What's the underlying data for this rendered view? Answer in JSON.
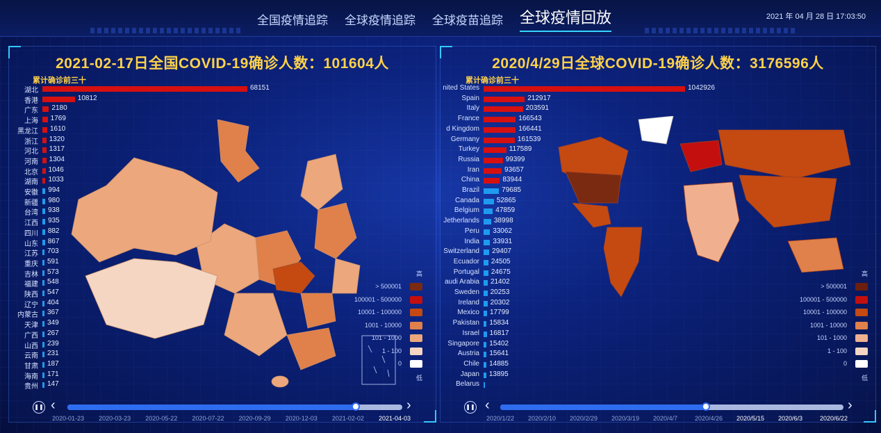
{
  "header": {
    "nav": [
      "全国疫情追踪",
      "全球疫情追踪",
      "全球疫苗追踪",
      "全球疫情回放"
    ],
    "active_index": 3,
    "clock": "2021 年 04 月 28 日 17:03:50"
  },
  "china_panel": {
    "title": "2021-02-17日全国COVID-19确诊人数：101604人",
    "rank_title": "累计确诊前三十",
    "items": [
      {
        "name": "湖北",
        "value": "68151"
      },
      {
        "name": "香港",
        "value": "10812"
      },
      {
        "name": "广东",
        "value": "2180"
      },
      {
        "name": "上海",
        "value": "1769"
      },
      {
        "name": "黑龙江",
        "value": "1610"
      },
      {
        "name": "浙江",
        "value": "1320"
      },
      {
        "name": "河北",
        "value": "1317"
      },
      {
        "name": "河南",
        "value": "1304"
      },
      {
        "name": "北京",
        "value": "1046"
      },
      {
        "name": "湖南",
        "value": "1033"
      },
      {
        "name": "安徽",
        "value": "994"
      },
      {
        "name": "新疆",
        "value": "980"
      },
      {
        "name": "台湾",
        "value": "938"
      },
      {
        "name": "江西",
        "value": "935"
      },
      {
        "name": "四川",
        "value": "882"
      },
      {
        "name": "山东",
        "value": "867"
      },
      {
        "name": "江苏",
        "value": "703"
      },
      {
        "name": "重庆",
        "value": "591"
      },
      {
        "name": "吉林",
        "value": "573"
      },
      {
        "name": "福建",
        "value": "548"
      },
      {
        "name": "陕西",
        "value": "547"
      },
      {
        "name": "辽宁",
        "value": "404"
      },
      {
        "name": "内蒙古",
        "value": "367"
      },
      {
        "name": "天津",
        "value": "349"
      },
      {
        "name": "广西",
        "value": "267"
      },
      {
        "name": "山西",
        "value": "239"
      },
      {
        "name": "云南",
        "value": "231"
      },
      {
        "name": "甘肃",
        "value": "187"
      },
      {
        "name": "海南",
        "value": "171"
      },
      {
        "name": "贵州",
        "value": "147"
      }
    ],
    "legend": {
      "high": "高",
      "low": "低",
      "ranges": [
        "> 500001",
        "100001 - 500000",
        "10001 - 100000",
        "1001 - 10000",
        "101 - 1000",
        "1 - 100",
        "0"
      ],
      "colors": [
        "#7b2a12",
        "#c40f0f",
        "#c44a12",
        "#e0804a",
        "#eca77c",
        "#f4d6c3",
        "#ffffff"
      ]
    },
    "timeline": {
      "ticks": [
        "2020-01-23",
        "2020-03-23",
        "2020-05-22",
        "2020-07-22",
        "2020-09-29",
        "2020-12-03",
        "2021-02-02",
        "2021-04-03"
      ],
      "progress": 0.86
    }
  },
  "world_panel": {
    "title": "2020/4/29日全球COVID-19确诊人数：3176596人",
    "rank_title": "累计确诊前三十",
    "items": [
      {
        "name": "nited States",
        "value": "1042926"
      },
      {
        "name": "Spain",
        "value": "212917"
      },
      {
        "name": "Italy",
        "value": "203591"
      },
      {
        "name": "France",
        "value": "166543"
      },
      {
        "name": "d Kingdom",
        "value": "166441"
      },
      {
        "name": "Germany",
        "value": "161539"
      },
      {
        "name": "Turkey",
        "value": "117589"
      },
      {
        "name": "Russia",
        "value": "99399"
      },
      {
        "name": "Iran",
        "value": "93657"
      },
      {
        "name": "China",
        "value": "83944"
      },
      {
        "name": "Brazil",
        "value": "79685"
      },
      {
        "name": "Canada",
        "value": "52865"
      },
      {
        "name": "Belgium",
        "value": "47859"
      },
      {
        "name": "Jetherlands",
        "value": "38998"
      },
      {
        "name": "Peru",
        "value": "33062"
      },
      {
        "name": "India",
        "value": "33931"
      },
      {
        "name": "Switzerland",
        "value": "29407"
      },
      {
        "name": "Ecuador",
        "value": "24505"
      },
      {
        "name": "Portugal",
        "value": "24675"
      },
      {
        "name": "audi Arabia",
        "value": "21402"
      },
      {
        "name": "Sweden",
        "value": "20253"
      },
      {
        "name": "Ireland",
        "value": "20302"
      },
      {
        "name": "Mexico",
        "value": "17799"
      },
      {
        "name": "Pakistan",
        "value": "15834"
      },
      {
        "name": "Israel",
        "value": "16817"
      },
      {
        "name": "Singapore",
        "value": "15402"
      },
      {
        "name": "Austria",
        "value": "15641"
      },
      {
        "name": "Chile",
        "value": "14885"
      },
      {
        "name": "Japan",
        "value": "13895"
      },
      {
        "name": "Belarus",
        "value": ""
      }
    ],
    "legend": {
      "high": "高",
      "low": "低",
      "ranges": [
        "> 500001",
        "100001 - 500000",
        "10001 - 100000",
        "1001 - 10000",
        "101 - 1000",
        "1 - 100",
        "0"
      ],
      "colors": [
        "#6b1f0c",
        "#c40f0f",
        "#c44a12",
        "#e0804a",
        "#f0b090",
        "#f4d6c3",
        "#ffffff"
      ]
    },
    "timeline": {
      "ticks": [
        "2020/1/22",
        "2020/2/10",
        "2020/2/29",
        "2020/3/19",
        "2020/4/7",
        "2020/4/26",
        "2020/5/15",
        "2020/6/3",
        "2020/6/22"
      ],
      "progress": 0.6
    }
  },
  "colors": {
    "bar_red": "#d61010",
    "bar_blue": "#1e9bf0",
    "title_gold": "#ffd24a"
  }
}
